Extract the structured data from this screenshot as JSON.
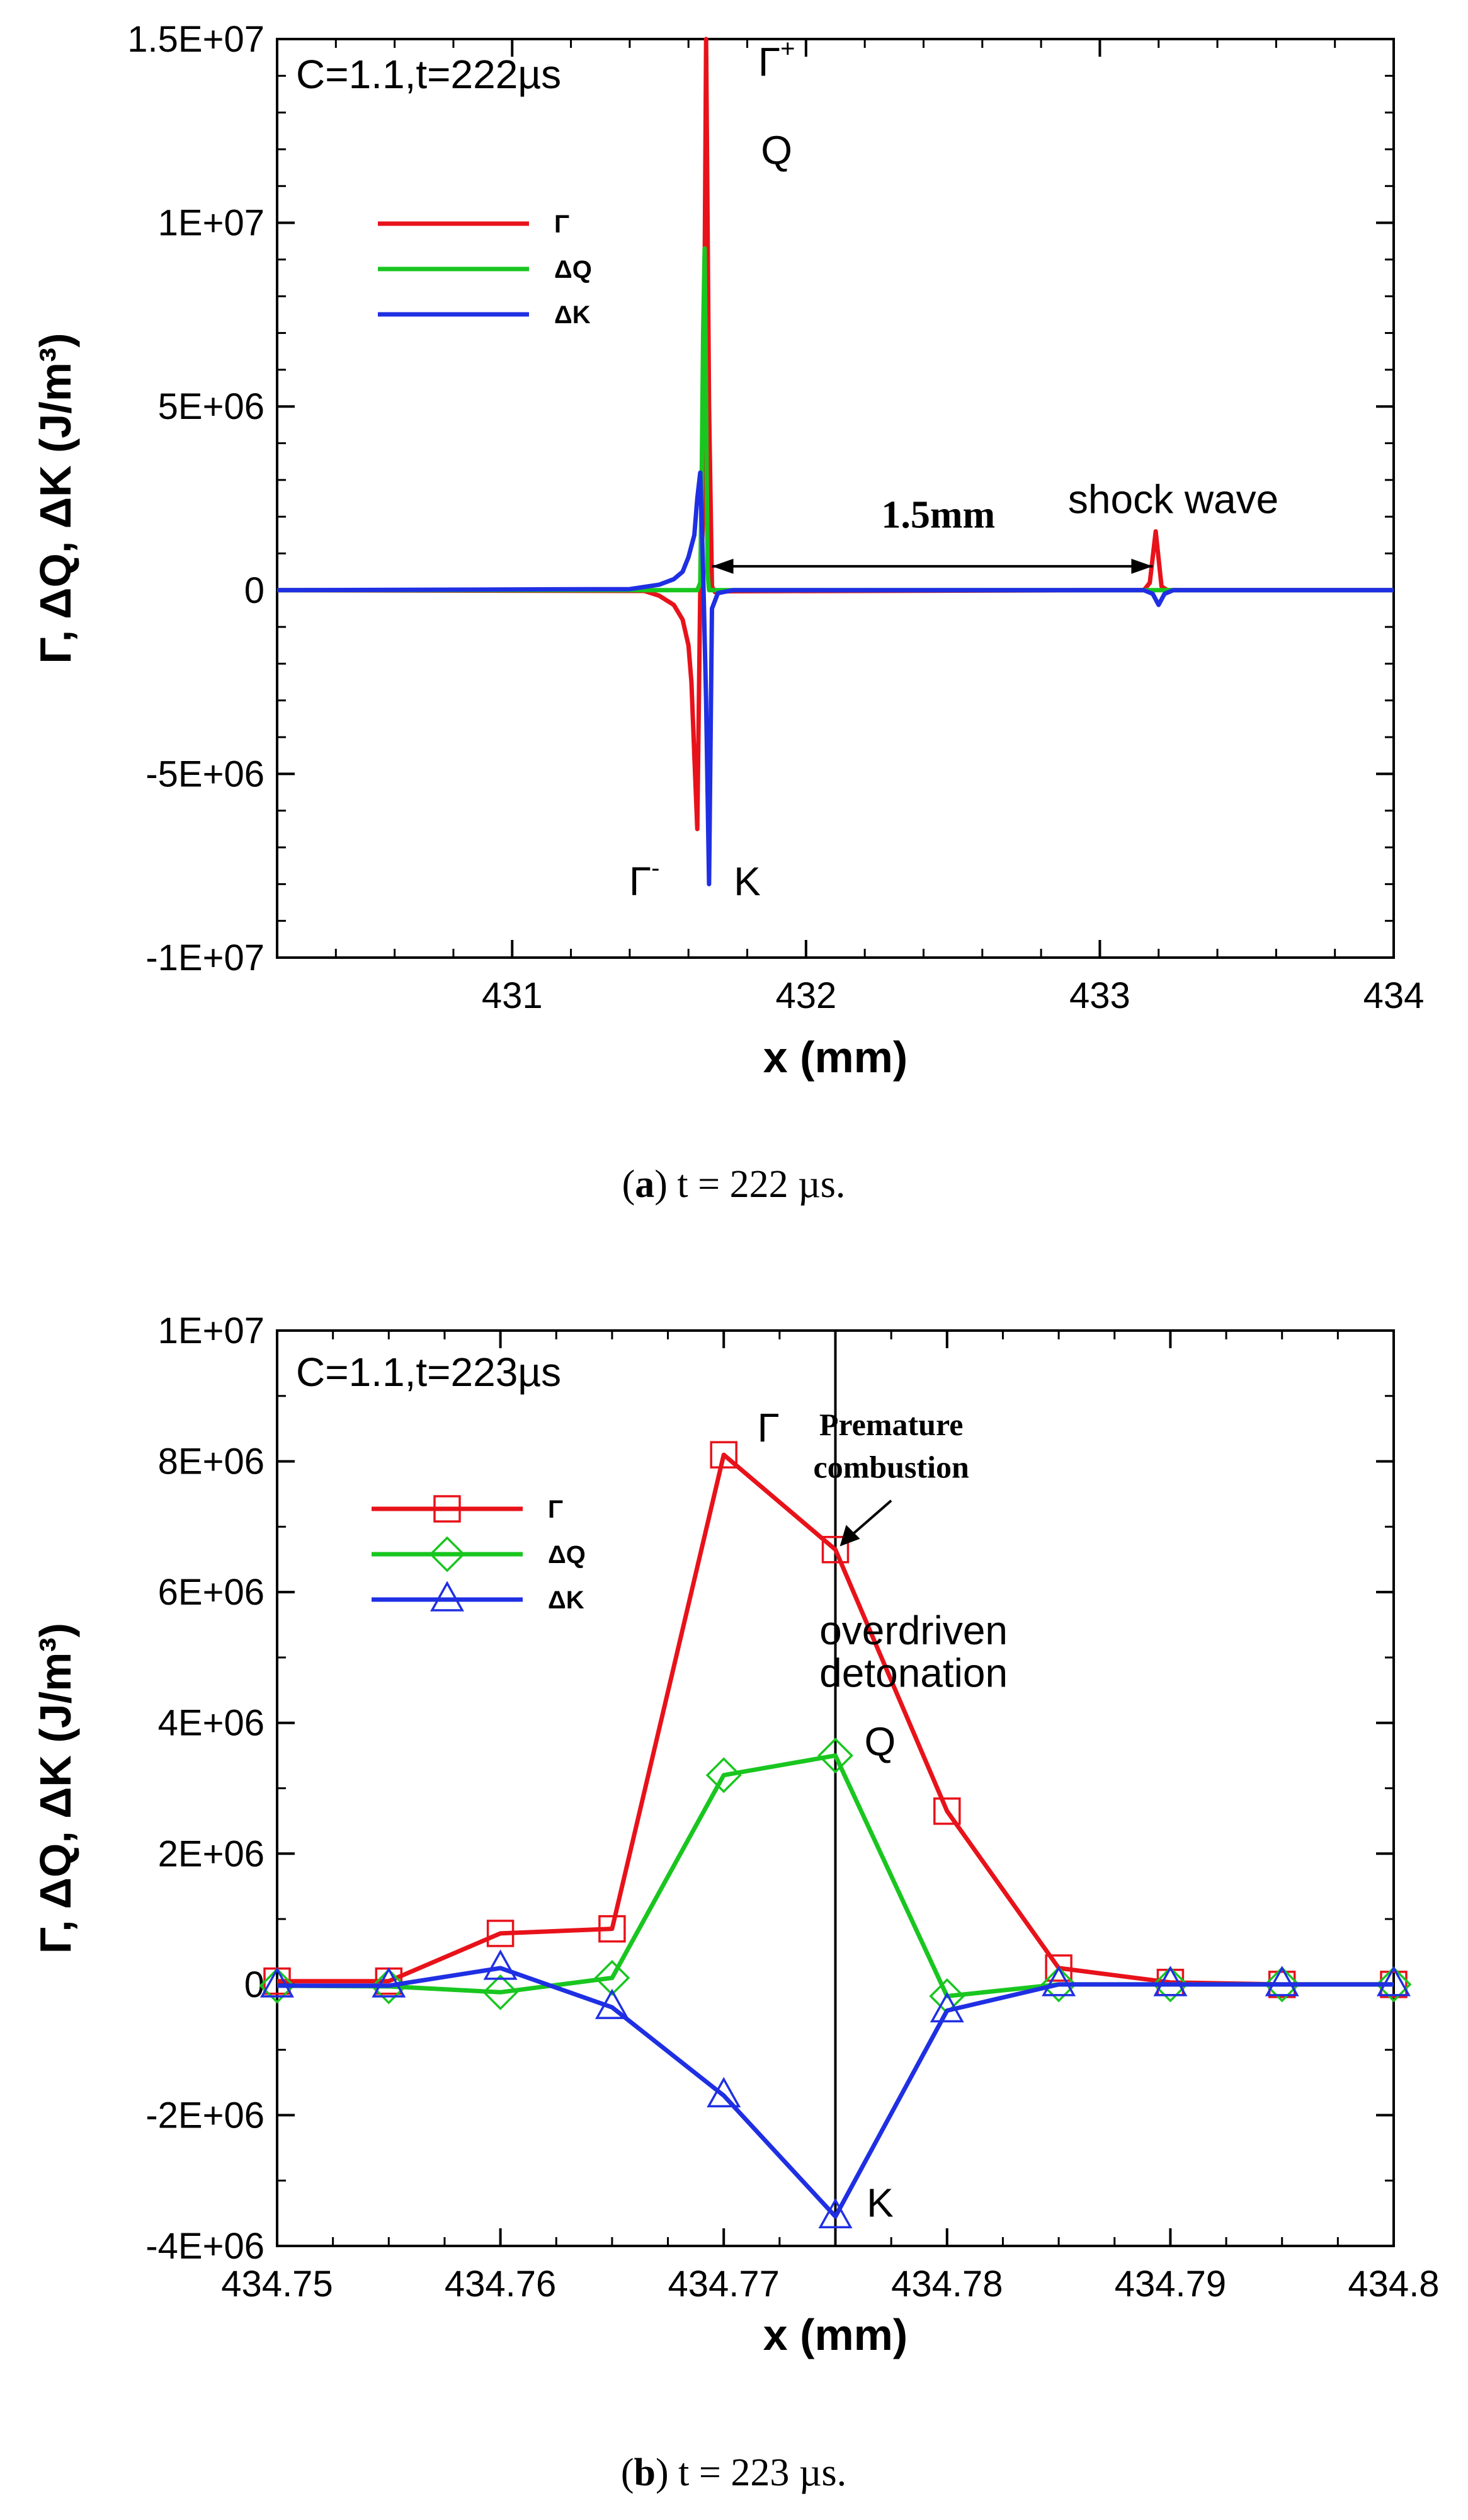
{
  "chart_data": [
    {
      "type": "line",
      "panel": "a",
      "title": "C=1.1,t=222µs",
      "xlabel": "x (mm)",
      "ylabel": "Γ, ΔQ, ΔK (J/m³)",
      "xlim": [
        430.2,
        434.0
      ],
      "ylim": [
        -10000000,
        15000000
      ],
      "x_ticks": [
        431,
        432,
        433,
        434
      ],
      "x_tick_labels": [
        "431",
        "432",
        "433",
        "434"
      ],
      "y_ticks": [
        -10000000,
        -5000000,
        0,
        5000000,
        10000000,
        15000000
      ],
      "y_tick_labels": [
        "-1E+07",
        "-5E+06",
        "0",
        "5E+06",
        "1E+07",
        "1.5E+07"
      ],
      "legend_position": "upper-left",
      "series": [
        {
          "name": "Γ",
          "color": "#e8121a",
          "x": [
            430.2,
            431.45,
            431.5,
            431.55,
            431.58,
            431.6,
            431.61,
            431.62,
            431.63,
            431.64,
            431.65,
            431.66,
            431.67,
            431.68,
            431.69,
            431.7,
            431.75,
            433.0,
            433.15,
            433.17,
            433.19,
            433.21,
            433.23,
            434.0
          ],
          "y": [
            0,
            -20000,
            -150000,
            -400000,
            -800000,
            -1500000,
            -2500000,
            -4500000,
            -6500000,
            0,
            2000000,
            15000000,
            5000000,
            100000,
            -50000,
            -40000,
            -30000,
            0,
            0,
            200000,
            1600000,
            100000,
            0,
            0
          ]
        },
        {
          "name": "ΔQ",
          "color": "#19c61f",
          "x": [
            430.2,
            431.6,
            431.63,
            431.64,
            431.645,
            431.65,
            431.655,
            431.66,
            431.665,
            431.67,
            431.68,
            431.7,
            434.0
          ],
          "y": [
            0,
            0,
            0,
            200000,
            3000000,
            7000000,
            9300000,
            5000000,
            500000,
            0,
            0,
            0,
            0
          ]
        },
        {
          "name": "ΔK",
          "color": "#1f2fe3",
          "x": [
            430.2,
            431.4,
            431.5,
            431.55,
            431.58,
            431.6,
            431.62,
            431.63,
            431.64,
            431.65,
            431.66,
            431.67,
            431.68,
            431.7,
            431.75,
            433.15,
            433.18,
            433.2,
            433.22,
            433.25,
            434.0
          ],
          "y": [
            0,
            30000,
            150000,
            300000,
            500000,
            900000,
            1500000,
            2500000,
            3200000,
            500000,
            -3000000,
            -8000000,
            -500000,
            -80000,
            0,
            0,
            -100000,
            -400000,
            -100000,
            0,
            0
          ]
        }
      ],
      "annotations": [
        {
          "text": "Γ",
          "sup": "+",
          "x": 431.9,
          "y": 14000000
        },
        {
          "text": "Q",
          "x": 431.9,
          "y": 11600000
        },
        {
          "text": "Γ",
          "sup": "-",
          "x": 431.45,
          "y": -8300000
        },
        {
          "text": "K",
          "x": 431.8,
          "y": -8300000
        },
        {
          "text": "1.5mm",
          "x": 432.45,
          "y": 1700000
        },
        {
          "text": "shock wave",
          "x": 433.25,
          "y": 2100000
        }
      ]
    },
    {
      "type": "line",
      "panel": "b",
      "title": "C=1.1,t=223µs",
      "xlabel": "x (mm)",
      "ylabel": "Γ, ΔQ, ΔK (J/m³)",
      "xlim": [
        434.75,
        434.8
      ],
      "ylim": [
        -4000000,
        10000000
      ],
      "x_ticks": [
        434.75,
        434.76,
        434.77,
        434.78,
        434.79,
        434.8
      ],
      "x_tick_labels": [
        "434.75",
        "434.76",
        "434.77",
        "434.78",
        "434.79",
        "434.8"
      ],
      "y_ticks": [
        -4000000,
        -2000000,
        0,
        2000000,
        4000000,
        6000000,
        8000000,
        10000000
      ],
      "y_tick_labels": [
        "-4E+06",
        "-2E+06",
        "0",
        "2E+06",
        "4E+06",
        "6E+06",
        "8E+06",
        "1E+07"
      ],
      "legend_position": "upper-left",
      "categories": [
        434.75,
        434.755,
        434.76,
        434.765,
        434.77,
        434.775,
        434.78,
        434.785,
        434.79,
        434.795,
        434.8
      ],
      "series": [
        {
          "name": "Γ",
          "color": "#e8121a",
          "marker": "square",
          "values": [
            50000,
            50000,
            780000,
            850000,
            8100000,
            6650000,
            2650000,
            250000,
            30000,
            0,
            0
          ]
        },
        {
          "name": "ΔQ",
          "color": "#19c61f",
          "marker": "diamond",
          "values": [
            -20000,
            -30000,
            -120000,
            100000,
            3200000,
            3500000,
            -180000,
            0,
            0,
            0,
            0
          ]
        },
        {
          "name": "ΔK",
          "color": "#1f2fe3",
          "marker": "triangle",
          "values": [
            -20000,
            -20000,
            250000,
            -350000,
            -1700000,
            -3550000,
            -400000,
            0,
            0,
            0,
            0
          ]
        }
      ],
      "vertical_line_x": 434.775,
      "annotations": [
        {
          "text": "Γ",
          "x": 434.772,
          "y": 8300000
        },
        {
          "text": "Premature",
          "x": 434.7775,
          "y": 8400000
        },
        {
          "text": "combustion",
          "x": 434.7775,
          "y": 7750000
        },
        {
          "text": "overdriven",
          "x": 434.7785,
          "y": 5200000
        },
        {
          "text": "detonation",
          "x": 434.7785,
          "y": 4550000
        },
        {
          "text": "Q",
          "x": 434.777,
          "y": 3500000
        },
        {
          "text": "K",
          "x": 434.777,
          "y": -3550000
        }
      ]
    }
  ],
  "captions": {
    "a": {
      "label": "a",
      "text": "t = 222 µs."
    },
    "b": {
      "label": "b",
      "text": "t = 223 µs."
    }
  }
}
